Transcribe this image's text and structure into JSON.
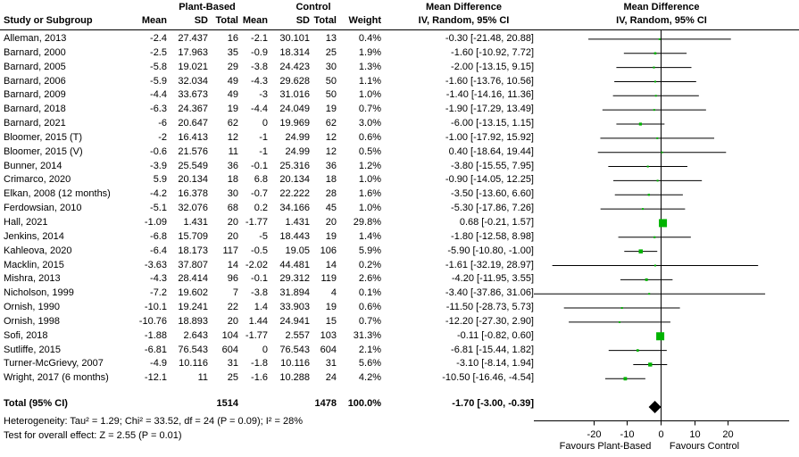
{
  "header": {
    "group1_label": "Plant-Based",
    "group2_label": "Control",
    "col_study": "Study or Subgroup",
    "col_mean": "Mean",
    "col_sd": "SD",
    "col_total": "Total",
    "col_weight": "Weight",
    "md_header_line1": "Mean Difference",
    "md_header_line2": "IV, Random, 95% CI",
    "plot_header_line1": "Mean Difference",
    "plot_header_line2": "IV, Random, 95% CI"
  },
  "total_row": {
    "label": "Total (95% CI)",
    "total1": "1514",
    "total2": "1478",
    "weight": "100.0%",
    "ci_text": "-1.70 [-3.00, -0.39]"
  },
  "footer": {
    "heterogeneity": "Heterogeneity: Tau² = 1.29; Chi² = 33.52, df = 24 (P = 0.09); I² = 28%",
    "overall_effect": "Test for overall effect: Z = 2.55 (P = 0.01)"
  },
  "chart_data": {
    "type": "forest",
    "effect_measure": "Mean Difference",
    "method": "IV, Random, 95% CI",
    "xlim": [
      -38,
      38
    ],
    "ticks": [
      -20,
      -10,
      0,
      10,
      20
    ],
    "favours_left": "Favours Plant-Based",
    "favours_right": "Favours Control",
    "line_color": "#000000",
    "marker_color": "#00b300",
    "diamond_color": "#000000",
    "studies": [
      {
        "name": "Alleman, 2013",
        "mean1": "-2.4",
        "sd1": "27.437",
        "n1": "16",
        "mean2": "-2.1",
        "sd2": "30.101",
        "n2": "13",
        "weight": "0.4%",
        "weight_pct": 0.4,
        "est": -0.3,
        "lo": -21.48,
        "hi": 20.88,
        "ci_text": "-0.30 [-21.48, 20.88]"
      },
      {
        "name": "Barnard, 2000",
        "mean1": "-2.5",
        "sd1": "17.963",
        "n1": "35",
        "mean2": "-0.9",
        "sd2": "18.314",
        "n2": "25",
        "weight": "1.9%",
        "weight_pct": 1.9,
        "est": -1.6,
        "lo": -10.92,
        "hi": 7.72,
        "ci_text": "-1.60 [-10.92, 7.72]"
      },
      {
        "name": "Barnard, 2005",
        "mean1": "-5.8",
        "sd1": "19.021",
        "n1": "29",
        "mean2": "-3.8",
        "sd2": "24.423",
        "n2": "30",
        "weight": "1.3%",
        "weight_pct": 1.3,
        "est": -2.0,
        "lo": -13.15,
        "hi": 9.15,
        "ci_text": "-2.00 [-13.15, 9.15]"
      },
      {
        "name": "Barnard, 2006",
        "mean1": "-5.9",
        "sd1": "32.034",
        "n1": "49",
        "mean2": "-4.3",
        "sd2": "29.628",
        "n2": "50",
        "weight": "1.1%",
        "weight_pct": 1.1,
        "est": -1.6,
        "lo": -13.76,
        "hi": 10.56,
        "ci_text": "-1.60 [-13.76, 10.56]"
      },
      {
        "name": "Barnard, 2009",
        "mean1": "-4.4",
        "sd1": "33.673",
        "n1": "49",
        "mean2": "-3",
        "sd2": "31.016",
        "n2": "50",
        "weight": "1.0%",
        "weight_pct": 1.0,
        "est": -1.4,
        "lo": -14.16,
        "hi": 11.36,
        "ci_text": "-1.40 [-14.16, 11.36]"
      },
      {
        "name": "Barnard, 2018",
        "mean1": "-6.3",
        "sd1": "24.367",
        "n1": "19",
        "mean2": "-4.4",
        "sd2": "24.049",
        "n2": "19",
        "weight": "0.7%",
        "weight_pct": 0.7,
        "est": -1.9,
        "lo": -17.29,
        "hi": 13.49,
        "ci_text": "-1.90 [-17.29, 13.49]"
      },
      {
        "name": "Barnard, 2021",
        "mean1": "-6",
        "sd1": "20.647",
        "n1": "62",
        "mean2": "0",
        "sd2": "19.969",
        "n2": "62",
        "weight": "3.0%",
        "weight_pct": 3.0,
        "est": -6.0,
        "lo": -13.15,
        "hi": 1.15,
        "ci_text": "-6.00 [-13.15, 1.15]"
      },
      {
        "name": "Bloomer, 2015 (T)",
        "mean1": "-2",
        "sd1": "16.413",
        "n1": "12",
        "mean2": "-1",
        "sd2": "24.99",
        "n2": "12",
        "weight": "0.6%",
        "weight_pct": 0.6,
        "est": -1.0,
        "lo": -17.92,
        "hi": 15.92,
        "ci_text": "-1.00 [-17.92, 15.92]"
      },
      {
        "name": "Bloomer, 2015 (V)",
        "mean1": "-0.6",
        "sd1": "21.576",
        "n1": "11",
        "mean2": "-1",
        "sd2": "24.99",
        "n2": "12",
        "weight": "0.5%",
        "weight_pct": 0.5,
        "est": 0.4,
        "lo": -18.64,
        "hi": 19.44,
        "ci_text": "0.40 [-18.64, 19.44]"
      },
      {
        "name": "Bunner, 2014",
        "mean1": "-3.9",
        "sd1": "25.549",
        "n1": "36",
        "mean2": "-0.1",
        "sd2": "25.316",
        "n2": "36",
        "weight": "1.2%",
        "weight_pct": 1.2,
        "est": -3.8,
        "lo": -15.55,
        "hi": 7.95,
        "ci_text": "-3.80 [-15.55, 7.95]"
      },
      {
        "name": "Crimarco, 2020",
        "mean1": "5.9",
        "sd1": "20.134",
        "n1": "18",
        "mean2": "6.8",
        "sd2": "20.134",
        "n2": "18",
        "weight": "1.0%",
        "weight_pct": 1.0,
        "est": -0.9,
        "lo": -14.05,
        "hi": 12.25,
        "ci_text": "-0.90 [-14.05, 12.25]"
      },
      {
        "name": "Elkan, 2008 (12 months)",
        "mean1": "-4.2",
        "sd1": "16.378",
        "n1": "30",
        "mean2": "-0.7",
        "sd2": "22.222",
        "n2": "28",
        "weight": "1.6%",
        "weight_pct": 1.6,
        "est": -3.5,
        "lo": -13.6,
        "hi": 6.6,
        "ci_text": "-3.50 [-13.60, 6.60]"
      },
      {
        "name": "Ferdowsian, 2010",
        "mean1": "-5.1",
        "sd1": "32.076",
        "n1": "68",
        "mean2": "0.2",
        "sd2": "34.166",
        "n2": "45",
        "weight": "1.0%",
        "weight_pct": 1.0,
        "est": -5.3,
        "lo": -17.86,
        "hi": 7.26,
        "ci_text": "-5.30 [-17.86, 7.26]"
      },
      {
        "name": "Hall, 2021",
        "mean1": "-1.09",
        "sd1": "1.431",
        "n1": "20",
        "mean2": "-1.77",
        "sd2": "1.431",
        "n2": "20",
        "weight": "29.8%",
        "weight_pct": 29.8,
        "est": 0.68,
        "lo": -0.21,
        "hi": 1.57,
        "ci_text": "0.68 [-0.21, 1.57]"
      },
      {
        "name": "Jenkins, 2014",
        "mean1": "-6.8",
        "sd1": "15.709",
        "n1": "20",
        "mean2": "-5",
        "sd2": "18.443",
        "n2": "19",
        "weight": "1.4%",
        "weight_pct": 1.4,
        "est": -1.8,
        "lo": -12.58,
        "hi": 8.98,
        "ci_text": "-1.80 [-12.58, 8.98]"
      },
      {
        "name": "Kahleova, 2020",
        "mean1": "-6.4",
        "sd1": "18.173",
        "n1": "117",
        "mean2": "-0.5",
        "sd2": "19.05",
        "n2": "106",
        "weight": "5.9%",
        "weight_pct": 5.9,
        "est": -5.9,
        "lo": -10.8,
        "hi": -1.0,
        "ci_text": "-5.90 [-10.80, -1.00]"
      },
      {
        "name": "Macklin, 2015",
        "mean1": "-3.63",
        "sd1": "37.807",
        "n1": "14",
        "mean2": "-2.02",
        "sd2": "44.481",
        "n2": "14",
        "weight": "0.2%",
        "weight_pct": 0.2,
        "est": -1.61,
        "lo": -32.19,
        "hi": 28.97,
        "ci_text": "-1.61 [-32.19, 28.97]"
      },
      {
        "name": "Mishra, 2013",
        "mean1": "-4.3",
        "sd1": "28.414",
        "n1": "96",
        "mean2": "-0.1",
        "sd2": "29.312",
        "n2": "119",
        "weight": "2.6%",
        "weight_pct": 2.6,
        "est": -4.2,
        "lo": -11.95,
        "hi": 3.55,
        "ci_text": "-4.20 [-11.95, 3.55]"
      },
      {
        "name": "Nicholson, 1999",
        "mean1": "-7.2",
        "sd1": "19.602",
        "n1": "7",
        "mean2": "-3.8",
        "sd2": "31.894",
        "n2": "4",
        "weight": "0.1%",
        "weight_pct": 0.1,
        "est": -3.4,
        "lo": -37.86,
        "hi": 31.06,
        "ci_text": "-3.40 [-37.86, 31.06]"
      },
      {
        "name": "Ornish, 1990",
        "mean1": "-10.1",
        "sd1": "19.241",
        "n1": "22",
        "mean2": "1.4",
        "sd2": "33.903",
        "n2": "19",
        "weight": "0.6%",
        "weight_pct": 0.6,
        "est": -11.5,
        "lo": -28.73,
        "hi": 5.73,
        "ci_text": "-11.50 [-28.73, 5.73]"
      },
      {
        "name": "Ornish, 1998",
        "mean1": "-10.76",
        "sd1": "18.893",
        "n1": "20",
        "mean2": "1.44",
        "sd2": "24.941",
        "n2": "15",
        "weight": "0.7%",
        "weight_pct": 0.7,
        "est": -12.2,
        "lo": -27.3,
        "hi": 2.9,
        "ci_text": "-12.20 [-27.30, 2.90]"
      },
      {
        "name": "Sofi, 2018",
        "mean1": "-1.88",
        "sd1": "2.643",
        "n1": "104",
        "mean2": "-1.77",
        "sd2": "2.557",
        "n2": "103",
        "weight": "31.3%",
        "weight_pct": 31.3,
        "est": -0.11,
        "lo": -0.82,
        "hi": 0.6,
        "ci_text": "-0.11 [-0.82, 0.60]"
      },
      {
        "name": "Sutliffe, 2015",
        "mean1": "-6.81",
        "sd1": "76.543",
        "n1": "604",
        "mean2": "0",
        "sd2": "76.543",
        "n2": "604",
        "weight": "2.1%",
        "weight_pct": 2.1,
        "est": -6.81,
        "lo": -15.44,
        "hi": 1.82,
        "ci_text": "-6.81 [-15.44, 1.82]"
      },
      {
        "name": "Turner-McGrievy, 2007",
        "mean1": "-4.9",
        "sd1": "10.116",
        "n1": "31",
        "mean2": "-1.8",
        "sd2": "10.116",
        "n2": "31",
        "weight": "5.6%",
        "weight_pct": 5.6,
        "est": -3.1,
        "lo": -8.14,
        "hi": 1.94,
        "ci_text": "-3.10 [-8.14, 1.94]"
      },
      {
        "name": "Wright, 2017 (6 months)",
        "mean1": "-12.1",
        "sd1": "11",
        "n1": "25",
        "mean2": "-1.6",
        "sd2": "10.288",
        "n2": "24",
        "weight": "4.2%",
        "weight_pct": 4.2,
        "est": -10.5,
        "lo": -16.46,
        "hi": -4.54,
        "ci_text": "-10.50 [-16.46, -4.54]"
      }
    ],
    "total": {
      "est": -1.7,
      "lo": -3.0,
      "hi": -0.39
    }
  }
}
